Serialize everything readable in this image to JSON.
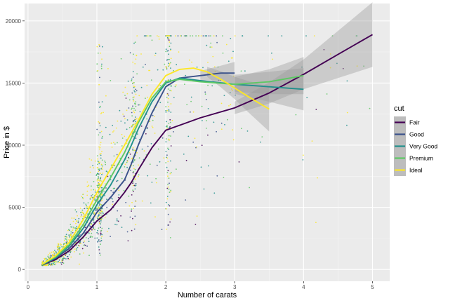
{
  "chart_data": {
    "type": "scatter",
    "title": "",
    "xlabel": "Number of carats",
    "ylabel": "Price in $",
    "xlim": [
      -0.05,
      5.25
    ],
    "ylim": [
      -950,
      21400
    ],
    "x_ticks": [
      0,
      1,
      2,
      3,
      4,
      5
    ],
    "y_ticks": [
      0,
      5000,
      10000,
      15000,
      20000
    ],
    "grid": true,
    "legend": {
      "title": "cut",
      "position": "right"
    },
    "series": [
      {
        "name": "Fair",
        "color": "#440154",
        "smooth": [
          [
            0.2,
            350
          ],
          [
            0.4,
            800
          ],
          [
            0.6,
            1500
          ],
          [
            0.8,
            2600
          ],
          [
            1.0,
            3900
          ],
          [
            1.2,
            4800
          ],
          [
            1.4,
            6200
          ],
          [
            1.5,
            7000
          ],
          [
            1.6,
            8000
          ],
          [
            1.8,
            9800
          ],
          [
            2.0,
            11200
          ],
          [
            2.2,
            11600
          ],
          [
            2.5,
            12200
          ],
          [
            3.0,
            13000
          ],
          [
            3.5,
            14200
          ],
          [
            4.0,
            15700
          ],
          [
            4.5,
            17300
          ],
          [
            5.0,
            18900
          ]
        ],
        "band": [
          [
            3.0,
            500
          ],
          [
            4.0,
            1200
          ],
          [
            5.0,
            2600
          ]
        ]
      },
      {
        "name": "Good",
        "color": "#3B528B",
        "smooth": [
          [
            0.2,
            350
          ],
          [
            0.4,
            900
          ],
          [
            0.6,
            1700
          ],
          [
            0.8,
            2900
          ],
          [
            1.0,
            4600
          ],
          [
            1.2,
            5800
          ],
          [
            1.4,
            7200
          ],
          [
            1.5,
            8500
          ],
          [
            1.6,
            10000
          ],
          [
            1.8,
            12600
          ],
          [
            2.0,
            14700
          ],
          [
            2.2,
            15400
          ],
          [
            2.5,
            15600
          ],
          [
            2.8,
            15800
          ],
          [
            3.0,
            15800
          ]
        ],
        "band": [
          [
            2.4,
            300
          ],
          [
            2.8,
            600
          ],
          [
            3.0,
            900
          ]
        ]
      },
      {
        "name": "Very Good",
        "color": "#21908C",
        "smooth": [
          [
            0.2,
            350
          ],
          [
            0.4,
            950
          ],
          [
            0.6,
            1900
          ],
          [
            0.8,
            3300
          ],
          [
            1.0,
            5200
          ],
          [
            1.2,
            6800
          ],
          [
            1.4,
            8800
          ],
          [
            1.5,
            10000
          ],
          [
            1.6,
            11300
          ],
          [
            1.8,
            13500
          ],
          [
            2.0,
            15000
          ],
          [
            2.2,
            15400
          ],
          [
            2.5,
            15200
          ],
          [
            3.0,
            14900
          ],
          [
            3.5,
            14700
          ],
          [
            4.0,
            14500
          ]
        ],
        "band": [
          [
            2.6,
            500
          ],
          [
            3.2,
            900
          ],
          [
            4.0,
            1700
          ]
        ]
      },
      {
        "name": "Premium",
        "color": "#5DC863",
        "smooth": [
          [
            0.2,
            400
          ],
          [
            0.4,
            1000
          ],
          [
            0.6,
            2000
          ],
          [
            0.8,
            3600
          ],
          [
            1.0,
            5600
          ],
          [
            1.2,
            7400
          ],
          [
            1.4,
            9400
          ],
          [
            1.5,
            10600
          ],
          [
            1.6,
            11800
          ],
          [
            1.8,
            13800
          ],
          [
            2.0,
            15100
          ],
          [
            2.2,
            15300
          ],
          [
            2.5,
            15100
          ],
          [
            3.0,
            14900
          ],
          [
            3.5,
            15100
          ],
          [
            4.0,
            15600
          ]
        ],
        "band": [
          [
            2.6,
            400
          ],
          [
            3.2,
            700
          ],
          [
            4.0,
            1500
          ]
        ]
      },
      {
        "name": "Ideal",
        "color": "#FDE725",
        "smooth": [
          [
            0.2,
            400
          ],
          [
            0.4,
            1100
          ],
          [
            0.6,
            2200
          ],
          [
            0.8,
            4000
          ],
          [
            1.0,
            6200
          ],
          [
            1.2,
            8100
          ],
          [
            1.4,
            10000
          ],
          [
            1.5,
            11000
          ],
          [
            1.6,
            12000
          ],
          [
            1.8,
            14100
          ],
          [
            2.0,
            15600
          ],
          [
            2.2,
            16100
          ],
          [
            2.4,
            16200
          ],
          [
            2.6,
            15900
          ],
          [
            2.8,
            15300
          ],
          [
            3.0,
            14600
          ],
          [
            3.2,
            13900
          ],
          [
            3.5,
            12900
          ]
        ],
        "band": [
          [
            2.6,
            400
          ],
          [
            3.0,
            900
          ],
          [
            3.5,
            1800
          ]
        ]
      }
    ]
  }
}
